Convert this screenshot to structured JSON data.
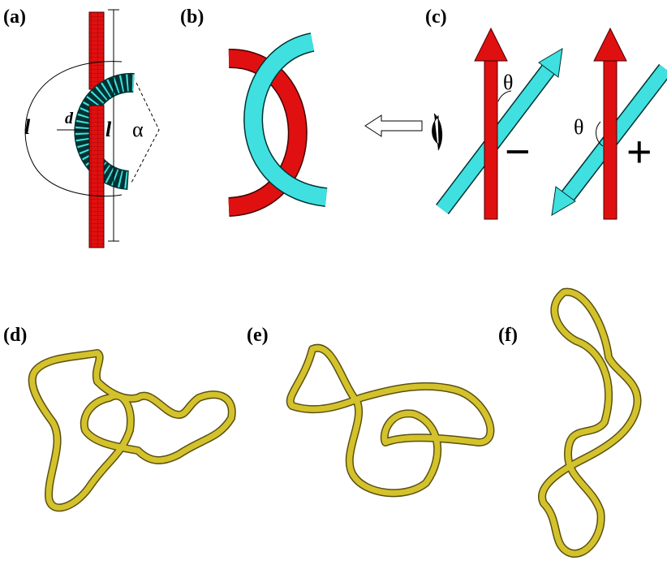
{
  "panels": [
    {
      "label": "(a)",
      "annotations": [
        "l",
        "d",
        "l",
        "α"
      ]
    },
    {
      "label": "(b)"
    },
    {
      "label": "(c)",
      "annotations": [
        "θ",
        "−",
        "θ",
        "+"
      ]
    },
    {
      "label": "(d)"
    },
    {
      "label": "(e)"
    },
    {
      "label": "(f)"
    }
  ]
}
